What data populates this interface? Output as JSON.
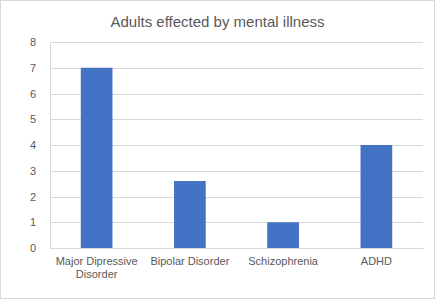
{
  "chart_data": {
    "type": "bar",
    "title": "Adults effected by mental illness",
    "categories": [
      "Major Dipressive Disorder",
      "Bipolar Disorder",
      "Schizophrenia",
      "ADHD"
    ],
    "values": [
      7,
      2.6,
      1,
      4
    ],
    "color": "#4472c4",
    "ylim": [
      0,
      8
    ],
    "yticks": [
      0,
      1,
      2,
      3,
      4,
      5,
      6,
      7,
      8
    ],
    "grid": true
  }
}
